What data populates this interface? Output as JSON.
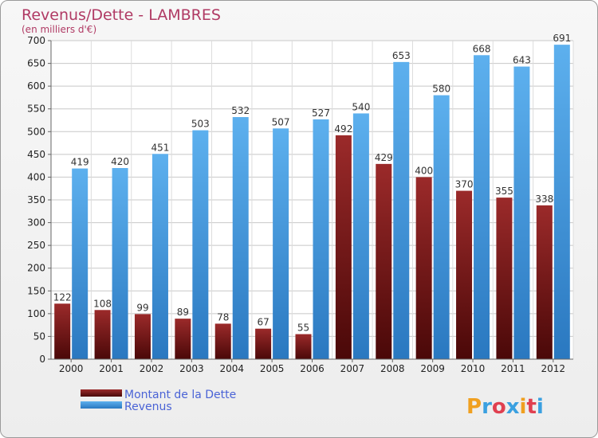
{
  "chart_data": {
    "type": "bar",
    "title": "Revenus/Dette - LAMBRES",
    "subtitle": "(en milliers d'€)",
    "categories": [
      "2000",
      "2001",
      "2002",
      "2003",
      "2004",
      "2005",
      "2006",
      "2007",
      "2008",
      "2009",
      "2010",
      "2011",
      "2012"
    ],
    "series": [
      {
        "name": "Montant de la Dette",
        "color": "#8b1a1a",
        "values": [
          122,
          108,
          99,
          89,
          78,
          67,
          55,
          492,
          429,
          400,
          370,
          355,
          338
        ]
      },
      {
        "name": "Revenus",
        "color": "#4aa3e6",
        "values": [
          419,
          420,
          451,
          503,
          532,
          507,
          527,
          540,
          653,
          580,
          668,
          643,
          691
        ]
      }
    ],
    "yticks": [
      0,
      50,
      100,
      150,
      200,
      250,
      300,
      350,
      400,
      450,
      500,
      550,
      600,
      650,
      700
    ],
    "ylim": [
      0,
      700
    ],
    "grid": true,
    "legend_position": "bottom-left"
  },
  "logo": {
    "letters": [
      "P",
      "r",
      "o",
      "x",
      "i",
      "t",
      "i"
    ],
    "colors": [
      "#f0a020",
      "#3aa0e0",
      "#e04050",
      "#3aa0e0",
      "#f0a020",
      "#e04050",
      "#3aa0e0"
    ]
  }
}
